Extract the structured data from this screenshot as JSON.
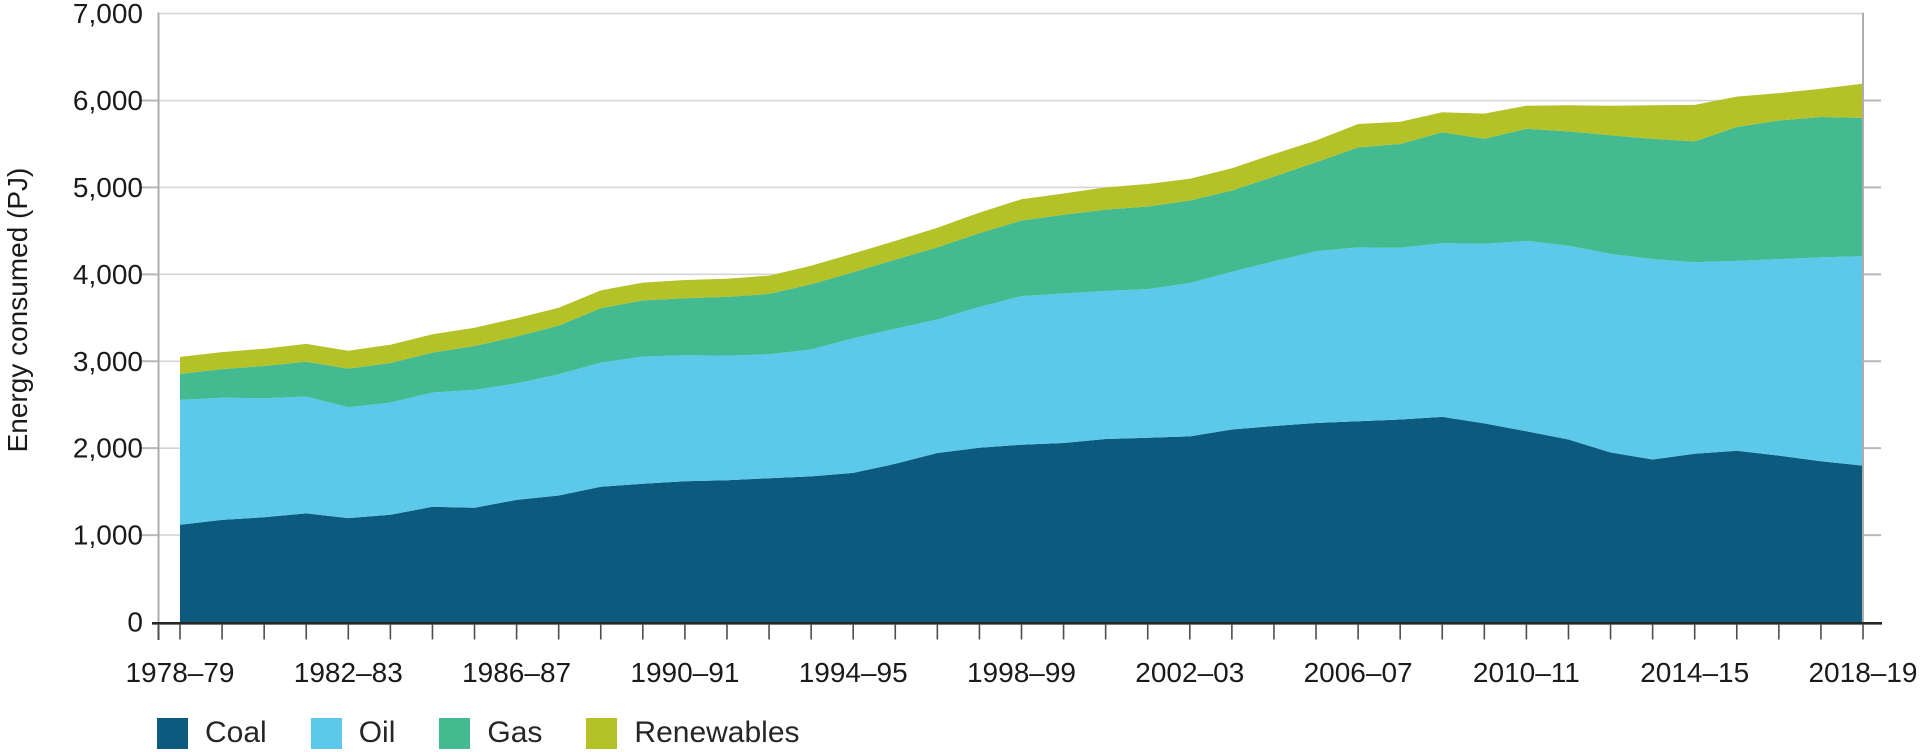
{
  "chart_data": {
    "type": "area",
    "stacked": true,
    "title": "",
    "xlabel": "",
    "ylabel": "Energy consumed (PJ)",
    "ylim": [
      0,
      7000
    ],
    "grid": true,
    "legend_position": "bottom",
    "y_ticks": [
      {
        "value": 0,
        "label": "0"
      },
      {
        "value": 1000,
        "label": "1,000"
      },
      {
        "value": 2000,
        "label": "2,000"
      },
      {
        "value": 3000,
        "label": "3,000"
      },
      {
        "value": 4000,
        "label": "4,000"
      },
      {
        "value": 5000,
        "label": "5,000"
      },
      {
        "value": 6000,
        "label": "6,000"
      },
      {
        "value": 7000,
        "label": "7,000"
      }
    ],
    "x_tick_label_indices": [
      0,
      4,
      8,
      12,
      16,
      20,
      24,
      28,
      32,
      36,
      40
    ],
    "categories": [
      "1978–79",
      "1979–80",
      "1980–81",
      "1981–82",
      "1982–83",
      "1983–84",
      "1984–85",
      "1985–86",
      "1986–87",
      "1987–88",
      "1988–89",
      "1989–90",
      "1990–91",
      "1991–92",
      "1992–93",
      "1993–94",
      "1994–95",
      "1995–96",
      "1996–97",
      "1997–98",
      "1998–99",
      "1999–00",
      "2000–01",
      "2001–02",
      "2002–03",
      "2003–04",
      "2004–05",
      "2005–06",
      "2006–07",
      "2007–08",
      "2008–09",
      "2009–10",
      "2010–11",
      "2011–12",
      "2012–13",
      "2013–14",
      "2014–15",
      "2015–16",
      "2016–17",
      "2017–18",
      "2018–19"
    ],
    "series": [
      {
        "name": "Coal",
        "color": "#0C5B7E",
        "values": [
          1120,
          1175,
          1205,
          1250,
          1195,
          1235,
          1325,
          1315,
          1405,
          1455,
          1555,
          1590,
          1620,
          1630,
          1655,
          1675,
          1715,
          1820,
          1945,
          2005,
          2040,
          2060,
          2105,
          2120,
          2135,
          2215,
          2255,
          2290,
          2310,
          2330,
          2360,
          2285,
          2195,
          2100,
          1950,
          1870,
          1935,
          1970,
          1915,
          1850,
          1800
        ]
      },
      {
        "name": "Oil",
        "color": "#5CC8EA",
        "values": [
          1435,
          1405,
          1370,
          1345,
          1275,
          1290,
          1315,
          1355,
          1340,
          1395,
          1430,
          1465,
          1450,
          1435,
          1425,
          1460,
          1550,
          1555,
          1535,
          1620,
          1710,
          1720,
          1705,
          1710,
          1765,
          1815,
          1895,
          1975,
          2000,
          1975,
          2000,
          2065,
          2190,
          2230,
          2285,
          2305,
          2205,
          2185,
          2260,
          2345,
          2410
        ]
      },
      {
        "name": "Gas",
        "color": "#43BA8F",
        "values": [
          300,
          330,
          370,
          400,
          445,
          455,
          460,
          505,
          540,
          560,
          625,
          645,
          655,
          675,
          695,
          750,
          760,
          795,
          830,
          850,
          870,
          905,
          935,
          950,
          950,
          935,
          975,
          1025,
          1150,
          1195,
          1275,
          1210,
          1290,
          1315,
          1365,
          1385,
          1390,
          1540,
          1595,
          1615,
          1590
        ]
      },
      {
        "name": "Renewables",
        "color": "#B4C228",
        "values": [
          195,
          195,
          200,
          205,
          205,
          210,
          210,
          210,
          210,
          205,
          205,
          205,
          210,
          210,
          210,
          215,
          215,
          215,
          225,
          235,
          245,
          245,
          255,
          260,
          250,
          255,
          260,
          250,
          270,
          255,
          230,
          290,
          265,
          300,
          340,
          385,
          420,
          350,
          315,
          325,
          395
        ]
      }
    ]
  },
  "legend": {
    "items": [
      {
        "label": "Coal",
        "color": "#0C5B7E"
      },
      {
        "label": "Oil",
        "color": "#5CC8EA"
      },
      {
        "label": "Gas",
        "color": "#43BA8F"
      },
      {
        "label": "Renewables",
        "color": "#B4C228"
      }
    ]
  },
  "styles": {
    "gridline_color": "#d5d5d5",
    "spine_color": "#adadad",
    "minor_tick_color": "#b9b9b9",
    "axis_color": "#262626",
    "year_tick_color": "#4d4d4d",
    "text_color": "#1a1a1a"
  }
}
